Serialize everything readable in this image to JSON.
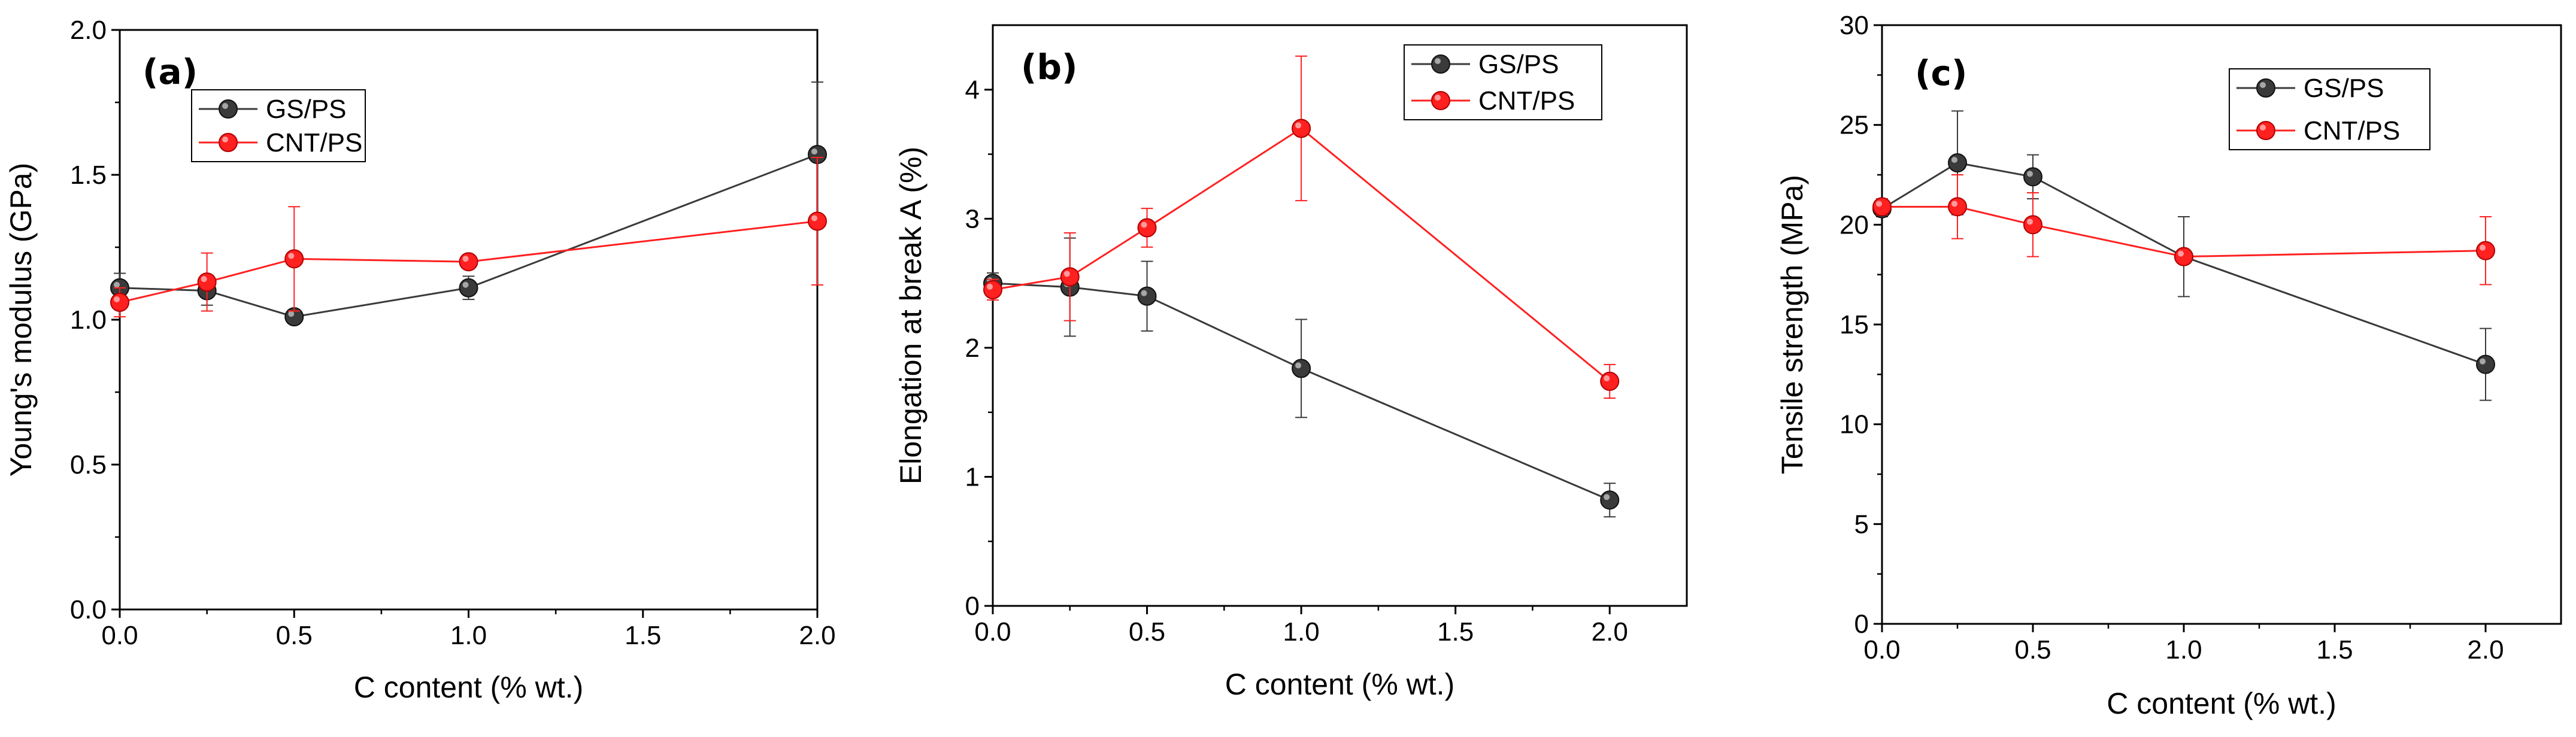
{
  "chart_data": [
    {
      "type": "line",
      "panel_label": "(a)",
      "xlabel": "C content (% wt.)",
      "ylabel": "Young's modulus (GPa)",
      "xlim": [
        0,
        2.0
      ],
      "ylim": [
        0,
        2.0
      ],
      "x_ticks": [
        "0.0",
        "0.5",
        "1.0",
        "1.5",
        "2.0"
      ],
      "y_ticks": [
        "0.0",
        "0.5",
        "1.0",
        "1.5",
        "2.0"
      ],
      "legend_position": "top-left",
      "series": [
        {
          "name": "GS/PS",
          "color": "#3a3a3a",
          "x": [
            0,
            0.25,
            0.5,
            1.0,
            2.0
          ],
          "y": [
            1.11,
            1.1,
            1.01,
            1.11,
            1.57
          ],
          "err": [
            0.05,
            0.05,
            0.02,
            0.04,
            0.25
          ]
        },
        {
          "name": "CNT/PS",
          "color": "#ff2020",
          "x": [
            0,
            0.25,
            0.5,
            1.0,
            2.0
          ],
          "y": [
            1.06,
            1.13,
            1.21,
            1.2,
            1.34
          ],
          "err": [
            0.05,
            0.1,
            0.18,
            0.02,
            0.22
          ]
        }
      ]
    },
    {
      "type": "line",
      "panel_label": "(b)",
      "xlabel": "C content (% wt.)",
      "ylabel": "Elongation at break A (%)",
      "xlim": [
        0,
        2.25
      ],
      "ylim": [
        0,
        4.5
      ],
      "x_ticks": [
        "0.0",
        "0.5",
        "1.0",
        "1.5",
        "2.0"
      ],
      "y_ticks": [
        "0",
        "1",
        "2",
        "3",
        "4"
      ],
      "legend_position": "top-right",
      "series": [
        {
          "name": "GS/PS",
          "color": "#3a3a3a",
          "x": [
            0,
            0.25,
            0.5,
            1.0,
            2.0
          ],
          "y": [
            2.5,
            2.47,
            2.4,
            1.84,
            0.82
          ],
          "err": [
            0.08,
            0.38,
            0.27,
            0.38,
            0.13
          ]
        },
        {
          "name": "CNT/PS",
          "color": "#ff2020",
          "x": [
            0,
            0.25,
            0.5,
            1.0,
            2.0
          ],
          "y": [
            2.45,
            2.55,
            2.93,
            3.7,
            1.74
          ],
          "err": [
            0.08,
            0.34,
            0.15,
            0.56,
            0.13
          ]
        }
      ]
    },
    {
      "type": "line",
      "panel_label": "(c)",
      "xlabel": "C content (% wt.)",
      "ylabel": "Tensile strength (MPa)",
      "xlim": [
        0,
        2.25
      ],
      "ylim": [
        0,
        30
      ],
      "x_ticks": [
        "0.0",
        "0.5",
        "1.0",
        "1.5",
        "2.0"
      ],
      "y_ticks": [
        "0",
        "5",
        "10",
        "15",
        "20",
        "25",
        "30"
      ],
      "legend_position": "top-right",
      "series": [
        {
          "name": "GS/PS",
          "color": "#3a3a3a",
          "x": [
            0,
            0.25,
            0.5,
            1.0,
            2.0
          ],
          "y": [
            20.8,
            23.1,
            22.4,
            18.4,
            13.0
          ],
          "err": [
            0.4,
            2.6,
            1.1,
            2.0,
            1.8
          ]
        },
        {
          "name": "CNT/PS",
          "color": "#ff2020",
          "x": [
            0,
            0.25,
            0.5,
            1.0,
            2.0
          ],
          "y": [
            20.9,
            20.9,
            20.0,
            18.4,
            18.7
          ],
          "err": [
            0.4,
            1.6,
            1.6,
            0.3,
            1.7
          ]
        }
      ]
    }
  ]
}
